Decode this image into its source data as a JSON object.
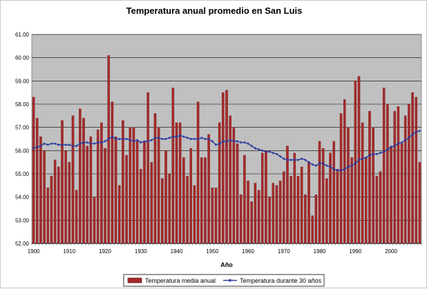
{
  "chart_data": {
    "type": "bar",
    "title": "Temperatura anual promedio en San Luis",
    "xlabel": "Año",
    "ylabel": "",
    "ylim": [
      52,
      61
    ],
    "yticks": [
      "52.00",
      "53.00",
      "54.00",
      "55.00",
      "56.00",
      "57.00",
      "58.00",
      "59.00",
      "60.00",
      "61.00"
    ],
    "x_start": 1900,
    "x_end": 2008,
    "xticks": [
      1900,
      1910,
      1920,
      1930,
      1940,
      1950,
      1960,
      1970,
      1980,
      1990,
      2000
    ],
    "grid": true,
    "legend_position": "bottom",
    "series": [
      {
        "name": "Temperatura media anual",
        "type": "bar",
        "color": "#a52a2a",
        "values": [
          58.3,
          57.4,
          56.6,
          56.0,
          54.4,
          54.9,
          55.6,
          55.3,
          57.3,
          56.0,
          55.5,
          57.5,
          54.3,
          57.8,
          57.4,
          56.2,
          56.6,
          54.0,
          56.9,
          57.2,
          56.1,
          60.1,
          58.1,
          56.6,
          54.5,
          57.3,
          55.8,
          57.0,
          57.0,
          56.4,
          55.2,
          56.4,
          58.5,
          55.5,
          57.6,
          57.0,
          54.8,
          56.0,
          55.0,
          58.7,
          57.2,
          57.2,
          55.7,
          54.9,
          56.1,
          54.5,
          58.1,
          55.7,
          55.7,
          56.7,
          54.4,
          54.4,
          57.2,
          58.5,
          58.6,
          57.5,
          57.0,
          56.3,
          54.1,
          55.8,
          54.7,
          53.8,
          54.6,
          54.3,
          55.9,
          56.0,
          54.0,
          54.6,
          54.5,
          54.7,
          55.1,
          56.2,
          54.9,
          55.9,
          54.9,
          55.3,
          54.1,
          55.5,
          53.2,
          54.1,
          56.4,
          56.1,
          54.8,
          55.9,
          56.4,
          55.2,
          57.6,
          58.2,
          57.0,
          55.7,
          59.0,
          59.2,
          57.2,
          55.7,
          57.7,
          57.0,
          54.9,
          55.1,
          58.7,
          58.0,
          56.2,
          57.7,
          57.9,
          56.3,
          57.5,
          58.0,
          58.5,
          58.3,
          55.5
        ]
      },
      {
        "name": "Temperatura durante 30 años",
        "type": "line",
        "color": "#2b3c9e",
        "values": [
          56.1,
          56.15,
          56.2,
          56.3,
          56.25,
          56.3,
          56.3,
          56.25,
          56.25,
          56.25,
          56.25,
          56.2,
          56.2,
          56.3,
          56.35,
          56.35,
          56.3,
          56.3,
          56.35,
          56.35,
          56.4,
          56.5,
          56.6,
          56.5,
          56.5,
          56.5,
          56.5,
          56.45,
          56.4,
          56.45,
          56.35,
          56.4,
          56.4,
          56.45,
          56.55,
          56.55,
          56.5,
          56.5,
          56.55,
          56.6,
          56.6,
          56.65,
          56.6,
          56.55,
          56.5,
          56.5,
          56.5,
          56.55,
          56.5,
          56.5,
          56.4,
          56.25,
          56.3,
          56.4,
          56.4,
          56.45,
          56.4,
          56.4,
          56.35,
          56.35,
          56.3,
          56.2,
          56.1,
          56.05,
          56.0,
          55.95,
          55.95,
          55.9,
          55.85,
          55.75,
          55.65,
          55.6,
          55.6,
          55.6,
          55.6,
          55.65,
          55.6,
          55.5,
          55.4,
          55.35,
          55.45,
          55.45,
          55.35,
          55.3,
          55.2,
          55.15,
          55.15,
          55.2,
          55.3,
          55.35,
          55.45,
          55.6,
          55.65,
          55.7,
          55.8,
          55.85,
          55.85,
          55.9,
          55.95,
          56.05,
          56.15,
          56.2,
          56.3,
          56.35,
          56.45,
          56.55,
          56.7,
          56.8,
          56.85
        ]
      }
    ]
  },
  "colors": {
    "plot_background": "#c0c0c0",
    "gridline": "#000000",
    "bar_fill": "#a52a2a",
    "line_color": "#2b3c9e"
  }
}
